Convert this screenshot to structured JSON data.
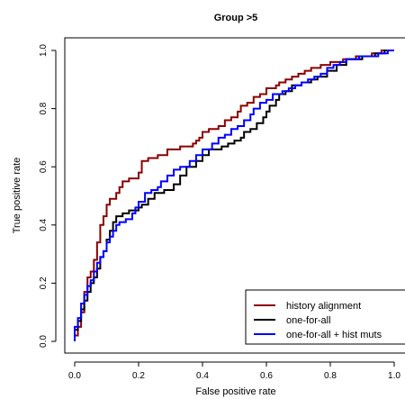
{
  "chart_data": {
    "type": "line",
    "title": "Group >5",
    "xlabel": "False positive rate",
    "ylabel": "True positive rate",
    "xlim": [
      0,
      1
    ],
    "ylim": [
      0,
      1
    ],
    "xticks": [
      "0.0",
      "0.2",
      "0.4",
      "0.6",
      "0.8",
      "1.0"
    ],
    "yticks": [
      "0.0",
      "0.2",
      "0.4",
      "0.6",
      "0.8",
      "1.0"
    ],
    "legend_position": "bottom-right",
    "series": [
      {
        "name": "history alignment",
        "color": "#8B0000",
        "points": [
          [
            0,
            0
          ],
          [
            0,
            0.02
          ],
          [
            0.01,
            0.02
          ],
          [
            0.01,
            0.05
          ],
          [
            0.02,
            0.05
          ],
          [
            0.02,
            0.1
          ],
          [
            0.03,
            0.1
          ],
          [
            0.03,
            0.17
          ],
          [
            0.04,
            0.17
          ],
          [
            0.04,
            0.22
          ],
          [
            0.05,
            0.22
          ],
          [
            0.05,
            0.24
          ],
          [
            0.06,
            0.24
          ],
          [
            0.06,
            0.28
          ],
          [
            0.07,
            0.28
          ],
          [
            0.07,
            0.34
          ],
          [
            0.08,
            0.34
          ],
          [
            0.08,
            0.4
          ],
          [
            0.09,
            0.4
          ],
          [
            0.09,
            0.43
          ],
          [
            0.1,
            0.43
          ],
          [
            0.1,
            0.47
          ],
          [
            0.11,
            0.47
          ],
          [
            0.11,
            0.49
          ],
          [
            0.13,
            0.49
          ],
          [
            0.13,
            0.51
          ],
          [
            0.14,
            0.51
          ],
          [
            0.14,
            0.53
          ],
          [
            0.15,
            0.53
          ],
          [
            0.15,
            0.55
          ],
          [
            0.17,
            0.55
          ],
          [
            0.17,
            0.56
          ],
          [
            0.2,
            0.56
          ],
          [
            0.2,
            0.58
          ],
          [
            0.21,
            0.58
          ],
          [
            0.21,
            0.62
          ],
          [
            0.23,
            0.62
          ],
          [
            0.23,
            0.63
          ],
          [
            0.26,
            0.63
          ],
          [
            0.26,
            0.64
          ],
          [
            0.29,
            0.64
          ],
          [
            0.29,
            0.66
          ],
          [
            0.33,
            0.66
          ],
          [
            0.33,
            0.67
          ],
          [
            0.37,
            0.67
          ],
          [
            0.37,
            0.68
          ],
          [
            0.38,
            0.68
          ],
          [
            0.38,
            0.69
          ],
          [
            0.39,
            0.69
          ],
          [
            0.39,
            0.7
          ],
          [
            0.4,
            0.7
          ],
          [
            0.4,
            0.72
          ],
          [
            0.42,
            0.72
          ],
          [
            0.42,
            0.73
          ],
          [
            0.45,
            0.73
          ],
          [
            0.45,
            0.74
          ],
          [
            0.47,
            0.74
          ],
          [
            0.47,
            0.76
          ],
          [
            0.49,
            0.76
          ],
          [
            0.49,
            0.77
          ],
          [
            0.51,
            0.77
          ],
          [
            0.51,
            0.79
          ],
          [
            0.52,
            0.79
          ],
          [
            0.52,
            0.81
          ],
          [
            0.54,
            0.81
          ],
          [
            0.54,
            0.82
          ],
          [
            0.56,
            0.82
          ],
          [
            0.56,
            0.84
          ],
          [
            0.58,
            0.84
          ],
          [
            0.58,
            0.85
          ],
          [
            0.6,
            0.85
          ],
          [
            0.6,
            0.87
          ],
          [
            0.63,
            0.87
          ],
          [
            0.63,
            0.88
          ],
          [
            0.64,
            0.88
          ],
          [
            0.64,
            0.89
          ],
          [
            0.66,
            0.89
          ],
          [
            0.66,
            0.9
          ],
          [
            0.68,
            0.9
          ],
          [
            0.68,
            0.91
          ],
          [
            0.7,
            0.91
          ],
          [
            0.7,
            0.92
          ],
          [
            0.72,
            0.92
          ],
          [
            0.72,
            0.93
          ],
          [
            0.74,
            0.93
          ],
          [
            0.74,
            0.94
          ],
          [
            0.77,
            0.94
          ],
          [
            0.77,
            0.95
          ],
          [
            0.8,
            0.95
          ],
          [
            0.8,
            0.96
          ],
          [
            0.84,
            0.96
          ],
          [
            0.84,
            0.97
          ],
          [
            0.88,
            0.97
          ],
          [
            0.88,
            0.98
          ],
          [
            0.93,
            0.98
          ],
          [
            0.93,
            0.99
          ],
          [
            0.96,
            0.99
          ],
          [
            0.96,
            1.0
          ],
          [
            1.0,
            1.0
          ]
        ]
      },
      {
        "name": "one-for-all",
        "color": "#000000",
        "points": [
          [
            0,
            0
          ],
          [
            0,
            0.04
          ],
          [
            0.01,
            0.04
          ],
          [
            0.01,
            0.07
          ],
          [
            0.02,
            0.07
          ],
          [
            0.02,
            0.11
          ],
          [
            0.03,
            0.11
          ],
          [
            0.03,
            0.14
          ],
          [
            0.04,
            0.14
          ],
          [
            0.04,
            0.17
          ],
          [
            0.05,
            0.17
          ],
          [
            0.05,
            0.2
          ],
          [
            0.06,
            0.2
          ],
          [
            0.06,
            0.22
          ],
          [
            0.07,
            0.22
          ],
          [
            0.07,
            0.25
          ],
          [
            0.08,
            0.25
          ],
          [
            0.08,
            0.29
          ],
          [
            0.09,
            0.29
          ],
          [
            0.09,
            0.31
          ],
          [
            0.1,
            0.31
          ],
          [
            0.1,
            0.35
          ],
          [
            0.11,
            0.35
          ],
          [
            0.11,
            0.38
          ],
          [
            0.12,
            0.38
          ],
          [
            0.12,
            0.41
          ],
          [
            0.13,
            0.41
          ],
          [
            0.13,
            0.43
          ],
          [
            0.15,
            0.43
          ],
          [
            0.15,
            0.44
          ],
          [
            0.17,
            0.44
          ],
          [
            0.17,
            0.45
          ],
          [
            0.2,
            0.45
          ],
          [
            0.2,
            0.46
          ],
          [
            0.21,
            0.46
          ],
          [
            0.21,
            0.47
          ],
          [
            0.23,
            0.47
          ],
          [
            0.23,
            0.49
          ],
          [
            0.25,
            0.49
          ],
          [
            0.25,
            0.51
          ],
          [
            0.28,
            0.51
          ],
          [
            0.28,
            0.52
          ],
          [
            0.31,
            0.52
          ],
          [
            0.31,
            0.54
          ],
          [
            0.33,
            0.54
          ],
          [
            0.33,
            0.57
          ],
          [
            0.35,
            0.57
          ],
          [
            0.35,
            0.6
          ],
          [
            0.38,
            0.6
          ],
          [
            0.38,
            0.62
          ],
          [
            0.4,
            0.62
          ],
          [
            0.4,
            0.64
          ],
          [
            0.42,
            0.64
          ],
          [
            0.42,
            0.66
          ],
          [
            0.46,
            0.66
          ],
          [
            0.46,
            0.67
          ],
          [
            0.48,
            0.67
          ],
          [
            0.48,
            0.68
          ],
          [
            0.5,
            0.68
          ],
          [
            0.5,
            0.69
          ],
          [
            0.52,
            0.69
          ],
          [
            0.52,
            0.7
          ],
          [
            0.53,
            0.7
          ],
          [
            0.53,
            0.72
          ],
          [
            0.55,
            0.72
          ],
          [
            0.55,
            0.73
          ],
          [
            0.57,
            0.73
          ],
          [
            0.57,
            0.75
          ],
          [
            0.59,
            0.75
          ],
          [
            0.59,
            0.77
          ],
          [
            0.6,
            0.77
          ],
          [
            0.6,
            0.79
          ],
          [
            0.61,
            0.79
          ],
          [
            0.61,
            0.81
          ],
          [
            0.63,
            0.81
          ],
          [
            0.63,
            0.83
          ],
          [
            0.64,
            0.83
          ],
          [
            0.64,
            0.85
          ],
          [
            0.66,
            0.85
          ],
          [
            0.66,
            0.86
          ],
          [
            0.68,
            0.86
          ],
          [
            0.68,
            0.88
          ],
          [
            0.71,
            0.88
          ],
          [
            0.71,
            0.89
          ],
          [
            0.74,
            0.89
          ],
          [
            0.74,
            0.9
          ],
          [
            0.76,
            0.9
          ],
          [
            0.76,
            0.91
          ],
          [
            0.79,
            0.91
          ],
          [
            0.79,
            0.93
          ],
          [
            0.82,
            0.93
          ],
          [
            0.82,
            0.95
          ],
          [
            0.85,
            0.95
          ],
          [
            0.85,
            0.97
          ],
          [
            0.9,
            0.97
          ],
          [
            0.9,
            0.98
          ],
          [
            0.94,
            0.98
          ],
          [
            0.94,
            0.99
          ],
          [
            0.97,
            0.99
          ],
          [
            0.97,
            1.0
          ],
          [
            1.0,
            1.0
          ]
        ]
      },
      {
        "name": "one-for-all + hist muts",
        "color": "#0000FF",
        "points": [
          [
            0,
            0
          ],
          [
            0,
            0.05
          ],
          [
            0.01,
            0.05
          ],
          [
            0.01,
            0.08
          ],
          [
            0.02,
            0.08
          ],
          [
            0.02,
            0.13
          ],
          [
            0.03,
            0.13
          ],
          [
            0.03,
            0.16
          ],
          [
            0.04,
            0.16
          ],
          [
            0.04,
            0.19
          ],
          [
            0.05,
            0.19
          ],
          [
            0.05,
            0.21
          ],
          [
            0.06,
            0.21
          ],
          [
            0.06,
            0.24
          ],
          [
            0.07,
            0.24
          ],
          [
            0.07,
            0.27
          ],
          [
            0.08,
            0.27
          ],
          [
            0.08,
            0.29
          ],
          [
            0.09,
            0.29
          ],
          [
            0.09,
            0.31
          ],
          [
            0.1,
            0.31
          ],
          [
            0.1,
            0.34
          ],
          [
            0.11,
            0.34
          ],
          [
            0.11,
            0.36
          ],
          [
            0.12,
            0.36
          ],
          [
            0.12,
            0.38
          ],
          [
            0.13,
            0.38
          ],
          [
            0.13,
            0.4
          ],
          [
            0.14,
            0.4
          ],
          [
            0.14,
            0.41
          ],
          [
            0.16,
            0.41
          ],
          [
            0.16,
            0.42
          ],
          [
            0.18,
            0.42
          ],
          [
            0.18,
            0.44
          ],
          [
            0.19,
            0.44
          ],
          [
            0.19,
            0.46
          ],
          [
            0.2,
            0.46
          ],
          [
            0.2,
            0.48
          ],
          [
            0.22,
            0.48
          ],
          [
            0.22,
            0.51
          ],
          [
            0.24,
            0.51
          ],
          [
            0.24,
            0.52
          ],
          [
            0.26,
            0.52
          ],
          [
            0.26,
            0.53
          ],
          [
            0.27,
            0.53
          ],
          [
            0.27,
            0.55
          ],
          [
            0.29,
            0.55
          ],
          [
            0.29,
            0.57
          ],
          [
            0.31,
            0.57
          ],
          [
            0.31,
            0.59
          ],
          [
            0.33,
            0.59
          ],
          [
            0.33,
            0.6
          ],
          [
            0.36,
            0.6
          ],
          [
            0.36,
            0.62
          ],
          [
            0.38,
            0.62
          ],
          [
            0.38,
            0.64
          ],
          [
            0.4,
            0.64
          ],
          [
            0.4,
            0.66
          ],
          [
            0.43,
            0.66
          ],
          [
            0.43,
            0.68
          ],
          [
            0.45,
            0.68
          ],
          [
            0.45,
            0.7
          ],
          [
            0.47,
            0.7
          ],
          [
            0.47,
            0.71
          ],
          [
            0.49,
            0.71
          ],
          [
            0.49,
            0.73
          ],
          [
            0.51,
            0.73
          ],
          [
            0.51,
            0.74
          ],
          [
            0.53,
            0.74
          ],
          [
            0.53,
            0.76
          ],
          [
            0.55,
            0.76
          ],
          [
            0.55,
            0.78
          ],
          [
            0.56,
            0.78
          ],
          [
            0.56,
            0.8
          ],
          [
            0.58,
            0.8
          ],
          [
            0.58,
            0.82
          ],
          [
            0.6,
            0.82
          ],
          [
            0.6,
            0.83
          ],
          [
            0.62,
            0.83
          ],
          [
            0.62,
            0.85
          ],
          [
            0.65,
            0.85
          ],
          [
            0.65,
            0.86
          ],
          [
            0.67,
            0.86
          ],
          [
            0.67,
            0.87
          ],
          [
            0.69,
            0.87
          ],
          [
            0.69,
            0.88
          ],
          [
            0.71,
            0.88
          ],
          [
            0.71,
            0.89
          ],
          [
            0.73,
            0.89
          ],
          [
            0.73,
            0.9
          ],
          [
            0.75,
            0.9
          ],
          [
            0.75,
            0.91
          ],
          [
            0.77,
            0.91
          ],
          [
            0.77,
            0.92
          ],
          [
            0.79,
            0.92
          ],
          [
            0.79,
            0.94
          ],
          [
            0.81,
            0.94
          ],
          [
            0.81,
            0.95
          ],
          [
            0.83,
            0.95
          ],
          [
            0.83,
            0.96
          ],
          [
            0.85,
            0.96
          ],
          [
            0.85,
            0.97
          ],
          [
            0.89,
            0.97
          ],
          [
            0.89,
            0.98
          ],
          [
            0.95,
            0.98
          ],
          [
            0.95,
            0.99
          ],
          [
            0.98,
            0.99
          ],
          [
            0.98,
            1.0
          ],
          [
            1.0,
            1.0
          ]
        ]
      }
    ]
  }
}
